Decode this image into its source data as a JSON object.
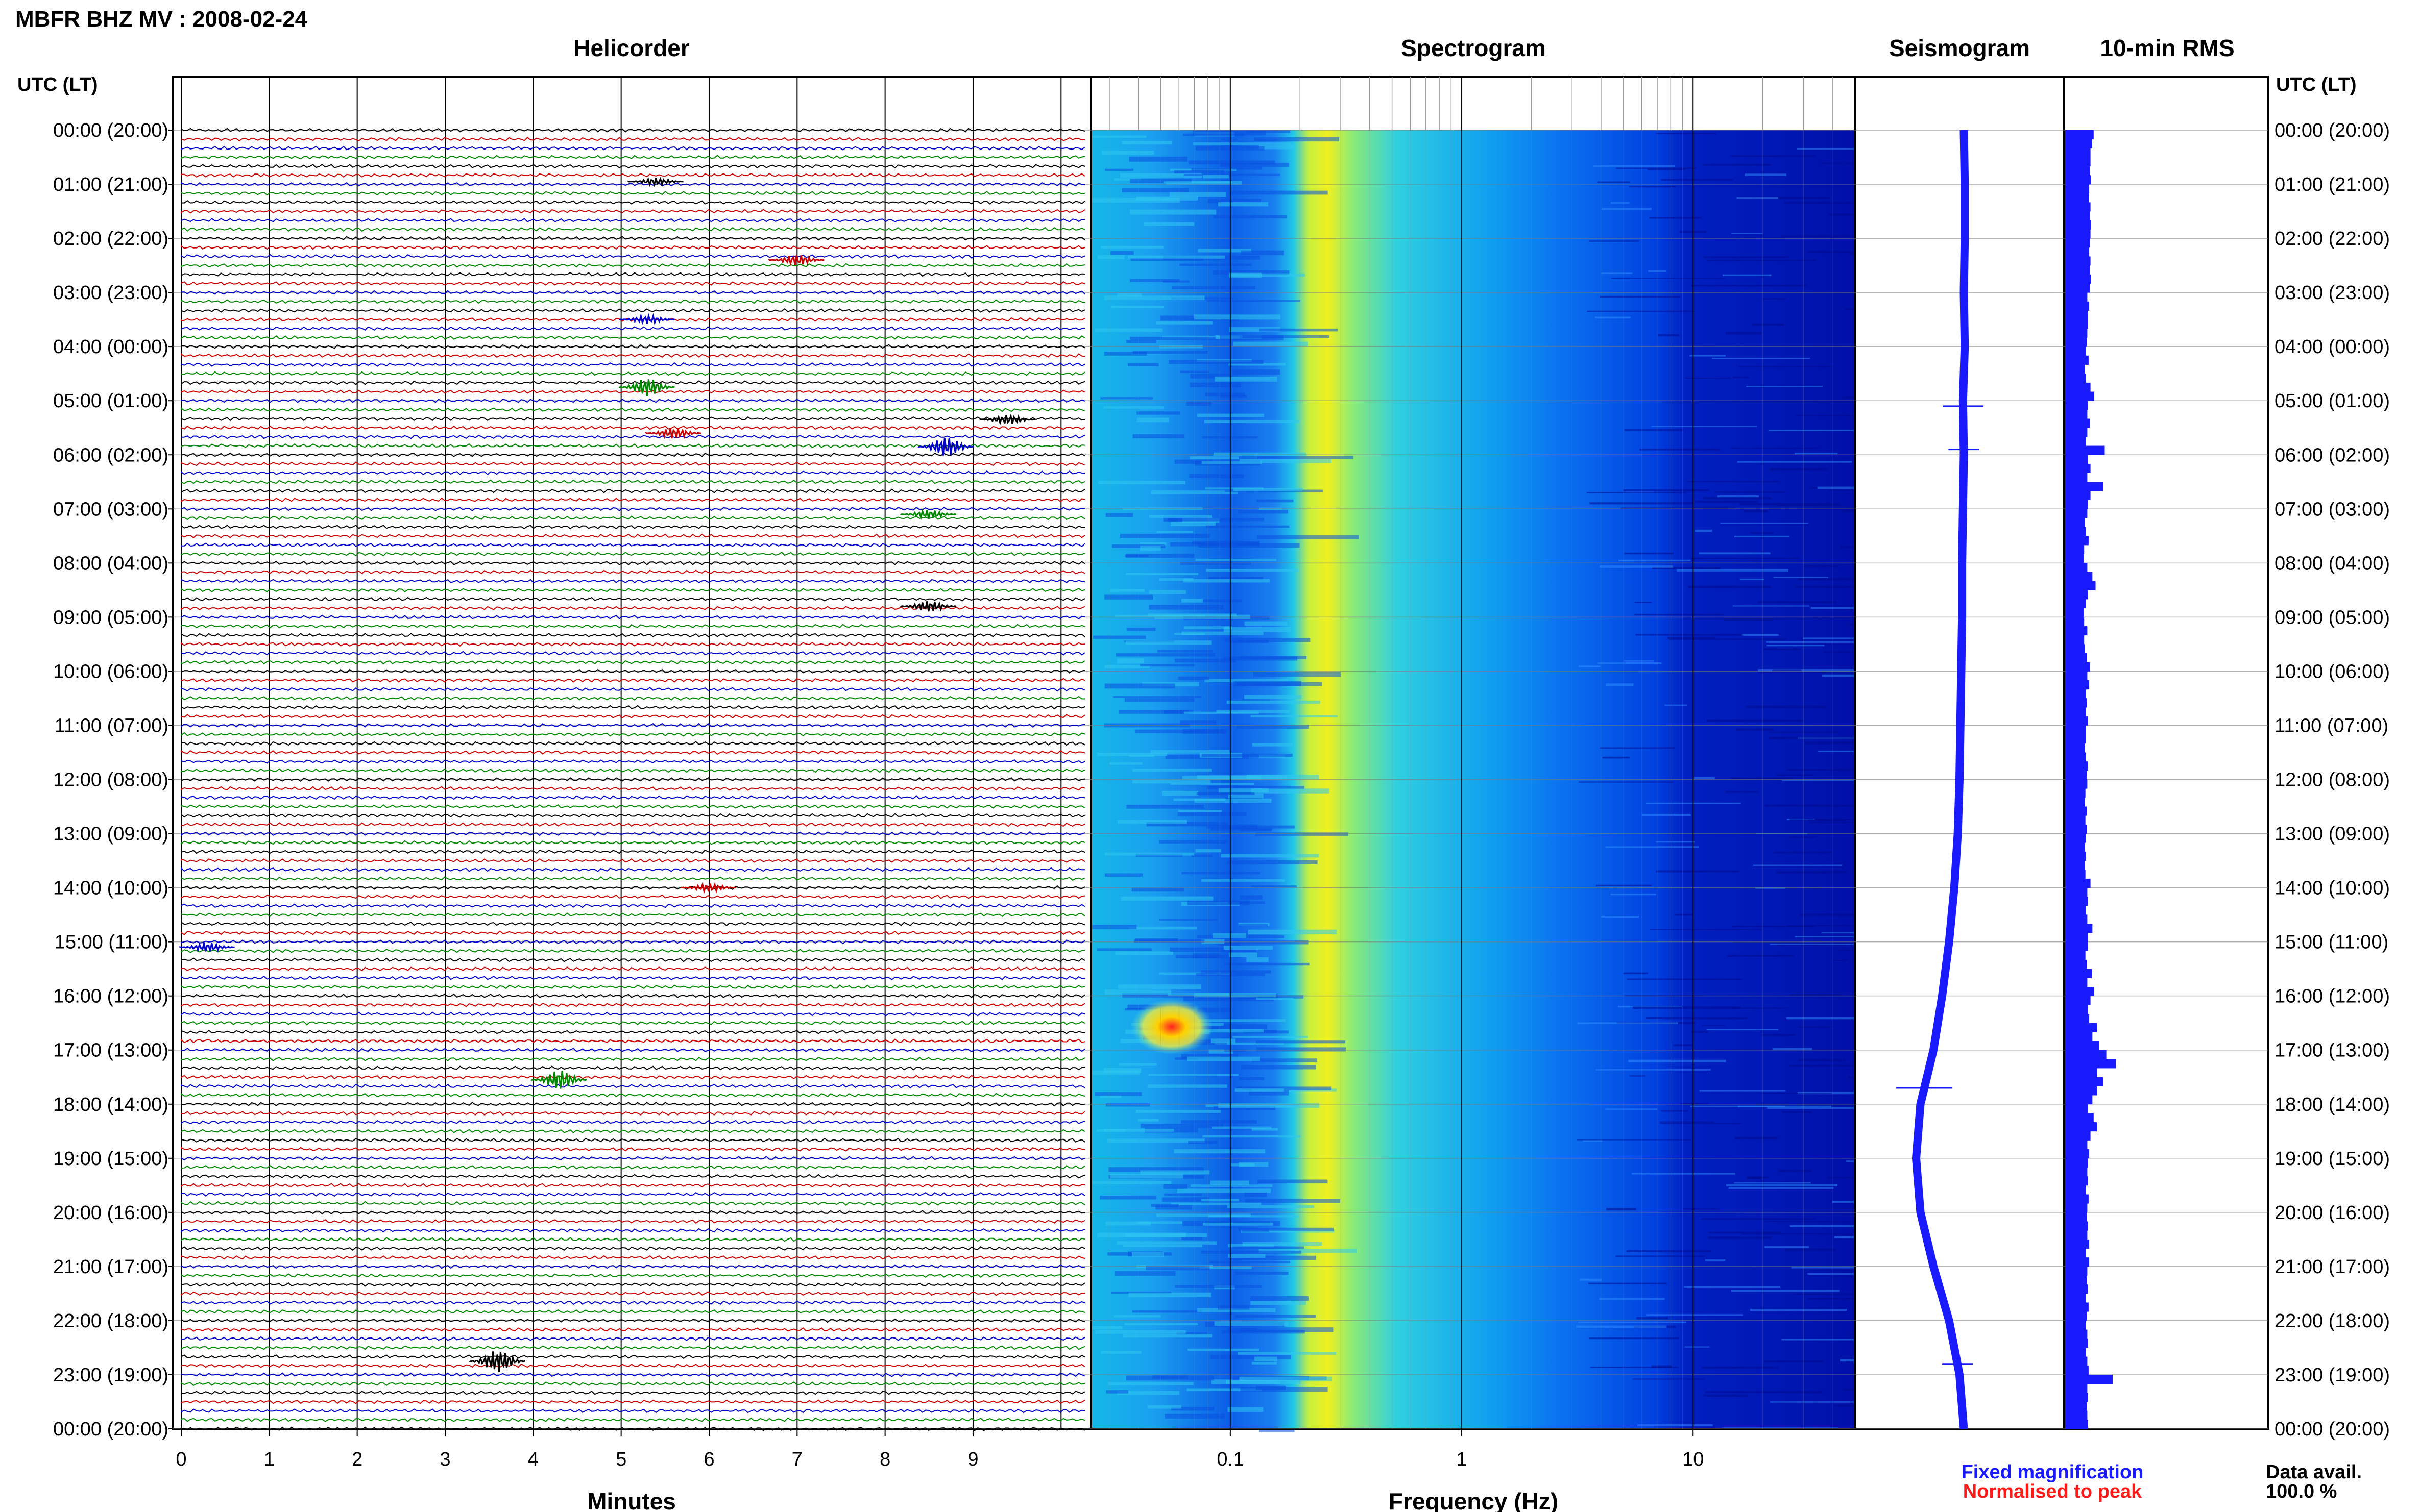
{
  "header": {
    "title": "MBFR BHZ MV : 2008-02-24"
  },
  "panels": {
    "helicorder_title": "Helicorder",
    "spectrogram_title": "Spectrogram",
    "seismogram_title": "Seismogram",
    "rms_title": "10-min RMS"
  },
  "axes": {
    "time_header_left": "UTC (LT)",
    "time_header_right": "UTC (LT)",
    "helicorder_xlabel": "Minutes",
    "spectrogram_xlabel": "Frequency (Hz)",
    "minute_ticks": [
      "0",
      "1",
      "2",
      "3",
      "4",
      "5",
      "6",
      "7",
      "8",
      "9"
    ],
    "frequency_ticks": [
      "0.1",
      "1",
      "10"
    ]
  },
  "legend": {
    "fixed": "Fixed magnification",
    "fixed_color": "#1a1aff",
    "normalised": "Normalised to peak",
    "normalised_color": "#ff1a1a",
    "data_avail_label": "Data avail.",
    "data_avail_value": "100.0 %"
  },
  "chart_data": {
    "type": "line",
    "time_labels": [
      "00:00 (20:00)",
      "01:00 (21:00)",
      "02:00 (22:00)",
      "03:00 (23:00)",
      "04:00 (00:00)",
      "05:00 (01:00)",
      "06:00 (02:00)",
      "07:00 (03:00)",
      "08:00 (04:00)",
      "09:00 (05:00)",
      "10:00 (06:00)",
      "11:00 (07:00)",
      "12:00 (08:00)",
      "13:00 (09:00)",
      "14:00 (10:00)",
      "15:00 (11:00)",
      "16:00 (12:00)",
      "17:00 (13:00)",
      "18:00 (14:00)",
      "19:00 (15:00)",
      "20:00 (16:00)",
      "21:00 (17:00)",
      "22:00 (18:00)",
      "23:00 (19:00)",
      "00:00 (20:00)"
    ],
    "helicorder": {
      "x_range_minutes": [
        0,
        10
      ],
      "trace_colors": [
        "#000000",
        "#cc0000",
        "#0000cc",
        "#008800"
      ],
      "events": [
        {
          "hour": 0.95,
          "minute": 5.4,
          "amp": 1.2
        },
        {
          "hour": 2.4,
          "minute": 7.0,
          "amp": 1.8
        },
        {
          "hour": 3.5,
          "minute": 5.3,
          "amp": 1.4
        },
        {
          "hour": 4.75,
          "minute": 5.3,
          "amp": 3.0
        },
        {
          "hour": 5.35,
          "minute": 9.4,
          "amp": 1.5
        },
        {
          "hour": 5.6,
          "minute": 5.6,
          "amp": 1.8
        },
        {
          "hour": 5.85,
          "minute": 8.7,
          "amp": 3.2
        },
        {
          "hour": 7.1,
          "minute": 8.5,
          "amp": 1.5
        },
        {
          "hour": 8.8,
          "minute": 8.5,
          "amp": 1.8
        },
        {
          "hour": 14.0,
          "minute": 6.0,
          "amp": 1.4
        },
        {
          "hour": 15.1,
          "minute": 0.3,
          "amp": 1.5
        },
        {
          "hour": 17.55,
          "minute": 4.3,
          "amp": 3.2
        },
        {
          "hour": 22.75,
          "minute": 3.6,
          "amp": 3.6
        }
      ]
    },
    "spectrogram": {
      "x_scale": "log",
      "x_range_hz": [
        0.025,
        50
      ],
      "peak_band_hz": [
        0.2,
        0.3
      ],
      "colormap": [
        "#00008b",
        "#0000ff",
        "#0080ff",
        "#00ffff",
        "#ffff00",
        "#ff0000"
      ]
    },
    "seismogram": {
      "hours": [
        0,
        1,
        2,
        3,
        4,
        5,
        6,
        7,
        8,
        9,
        10,
        11,
        12,
        13,
        14,
        15,
        16,
        17,
        18,
        19,
        20,
        21,
        22,
        23,
        24
      ],
      "offset": [
        0.05,
        0.06,
        0.06,
        0.05,
        0.06,
        0.04,
        0.05,
        0.04,
        0.03,
        0.03,
        0.02,
        0.01,
        0.0,
        -0.02,
        -0.06,
        -0.12,
        -0.2,
        -0.3,
        -0.45,
        -0.5,
        -0.45,
        -0.3,
        -0.12,
        0.0,
        0.05
      ],
      "spikes": [
        {
          "hour": 5.1,
          "amp": 0.4
        },
        {
          "hour": 5.9,
          "amp": 0.3
        },
        {
          "hour": 17.7,
          "amp": 0.55
        },
        {
          "hour": 22.8,
          "amp": 0.3
        }
      ]
    },
    "rms_10min": [
      0.9,
      0.85,
      0.8,
      0.8,
      0.78,
      0.82,
      0.76,
      0.75,
      0.8,
      0.78,
      0.82,
      0.8,
      0.78,
      0.76,
      0.8,
      0.78,
      0.82,
      0.78,
      0.7,
      0.76,
      0.72,
      0.72,
      0.7,
      0.68,
      0.66,
      0.74,
      0.62,
      0.66,
      0.8,
      0.92,
      0.72,
      0.7,
      0.78,
      0.7,
      0.66,
      1.25,
      0.72,
      0.8,
      0.7,
      1.2,
      0.8,
      0.72,
      0.7,
      0.62,
      0.66,
      0.74,
      0.6,
      0.58,
      0.7,
      0.86,
      0.96,
      0.72,
      0.66,
      0.58,
      0.6,
      0.7,
      0.6,
      0.62,
      0.68,
      0.78,
      0.7,
      0.76,
      0.66,
      0.68,
      0.66,
      0.72,
      0.66,
      0.66,
      0.62,
      0.66,
      0.72,
      0.68,
      0.7,
      0.64,
      0.62,
      0.68,
      0.64,
      0.68,
      0.66,
      0.62,
      0.66,
      0.62,
      0.64,
      0.8,
      0.7,
      0.72,
      0.66,
      0.7,
      0.86,
      0.72,
      0.72,
      0.64,
      0.68,
      0.84,
      0.7,
      0.92,
      0.8,
      0.72,
      0.76,
      1.0,
      0.86,
      1.08,
      1.3,
      1.6,
      1.0,
      1.2,
      1.0,
      0.86,
      0.72,
      0.9,
      1.0,
      0.8,
      0.7,
      0.76,
      0.72,
      0.7,
      0.72,
      0.66,
      0.74,
      0.7,
      0.68,
      0.72,
      0.7,
      0.76,
      0.66,
      0.76,
      0.7,
      0.68,
      0.72,
      0.66,
      0.74,
      0.68,
      0.66,
      0.7,
      0.72,
      0.66,
      0.7,
      0.74,
      1.5,
      0.7,
      0.72,
      0.68,
      0.7,
      0.72
    ],
    "data_available_percent": 100.0
  }
}
